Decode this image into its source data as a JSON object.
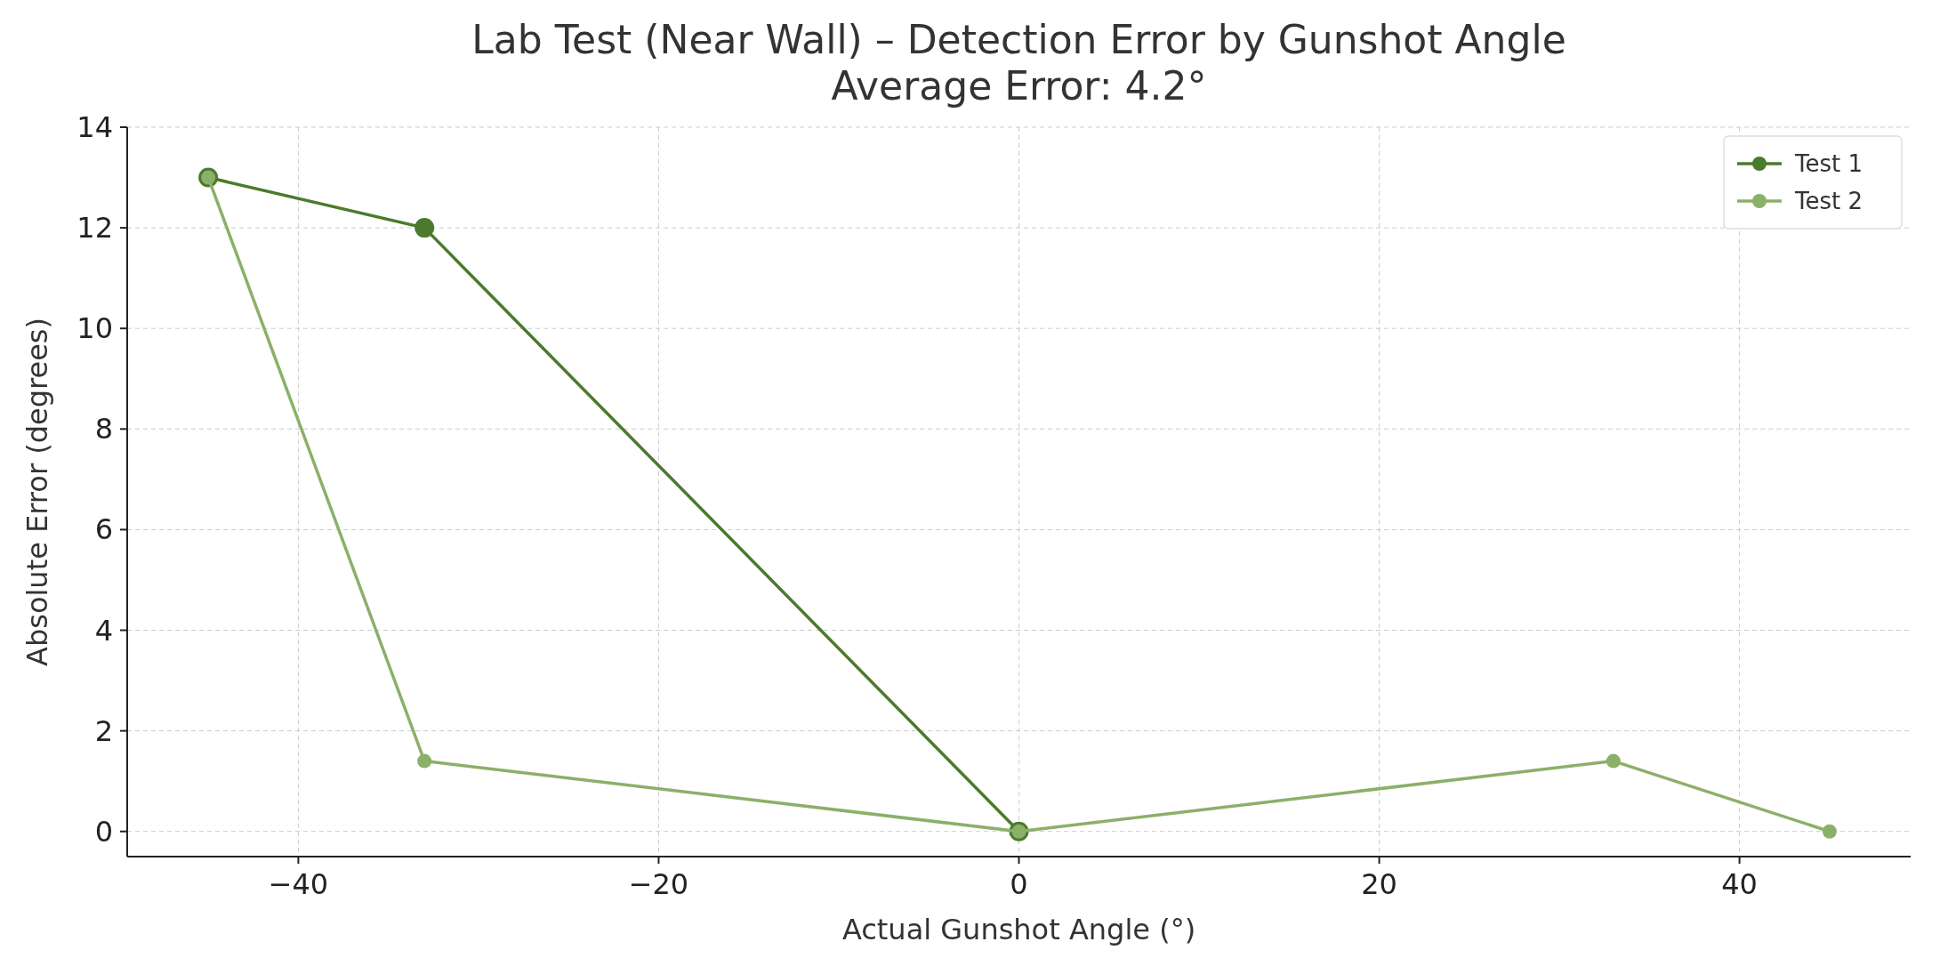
{
  "chart_data": {
    "type": "line",
    "title": "Lab Test (Near Wall) – Detection Error by Gunshot Angle",
    "subtitle": "Average Error: 4.2°",
    "xlabel": "Actual Gunshot Angle (°)",
    "ylabel": "Absolute Error (degrees)",
    "x": [
      -45,
      -33,
      0,
      33,
      45
    ],
    "series": [
      {
        "name": "Test 1",
        "color": "#4b7a2c",
        "values": [
          13,
          12,
          0,
          null,
          null
        ]
      },
      {
        "name": "Test 2",
        "color": "#8bb069",
        "values": [
          13,
          1.4,
          0,
          1.4,
          0
        ]
      }
    ],
    "xlim": [
      -49.5,
      49.5
    ],
    "ylim": [
      -0.5,
      14
    ],
    "xticks": [
      -40,
      -20,
      0,
      20,
      40
    ],
    "yticks": [
      0,
      2,
      4,
      6,
      8,
      10,
      12,
      14
    ],
    "grid": true,
    "legend": "top right",
    "marker": "circle",
    "line_style": "solid"
  }
}
